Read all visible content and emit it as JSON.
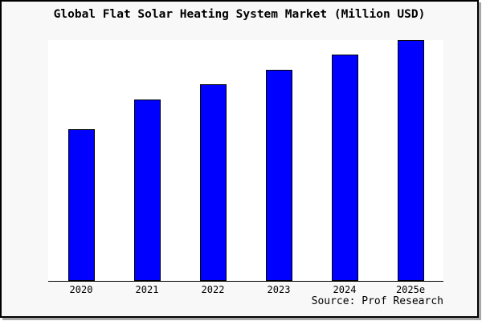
{
  "title": "Global Flat Solar Heating System Market (Million USD)",
  "source_note": "Source: Prof Research",
  "colors": {
    "bar_fill": "#0000FF",
    "bar_border": "#000000",
    "canvas_background": "#F8F8F8",
    "plot_background": "#FFFFFF",
    "axis_line": "#000000",
    "frame_border": "#000000",
    "frame_shadow": "#A8A8A8",
    "text": "#000000"
  },
  "chart_data": {
    "type": "bar",
    "title": "Global Flat Solar Heating System Market (Million USD)",
    "categories": [
      "2020",
      "2021",
      "2022",
      "2023",
      "2024",
      "2025e"
    ],
    "values_relative_pct_of_max": [
      63,
      75.3,
      81.7,
      87.7,
      94,
      100
    ],
    "xlabel": "",
    "ylabel": "",
    "y_axis_ticks": "none shown - values are relative bar heights (tallest bar 2025e = 100, reaches plot top)",
    "grid": false,
    "legend": "none",
    "source_note": "Source: Prof Research"
  }
}
